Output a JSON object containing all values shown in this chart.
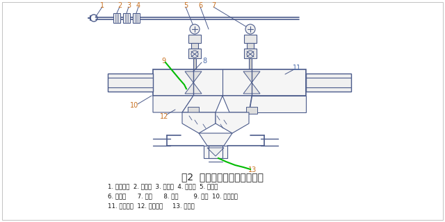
{
  "title": "图2  数控气动滑阀工作原理图",
  "legend_lines": [
    "1. 高压风管  2. 过滤器  3. 过滤器  4. 油雾器  5. 调压阀",
    "6. 电磁阀      7. 气缸      8. 阀芯        9. 定器  10. 进气风箱",
    "11. 排气风箱  12. 手动蝶阀     13. 空气室"
  ],
  "bg_color": "#ffffff",
  "line_color": "#4a5a8a",
  "green_color": "#00bb00",
  "orange_color": "#c87020",
  "blue_label_color": "#4a6aaa",
  "title_color": "#222222",
  "legend_color": "#111111",
  "fig_width": 6.4,
  "fig_height": 3.2,
  "dpi": 100
}
